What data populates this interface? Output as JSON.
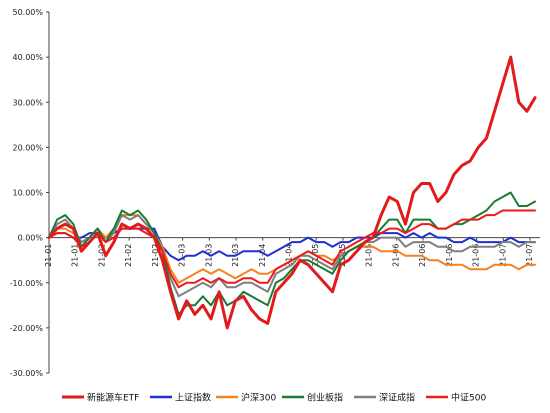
{
  "chart_data": {
    "type": "line",
    "ylim": [
      -30,
      50
    ],
    "y_tick_values": [
      50,
      40,
      30,
      20,
      10,
      0,
      -10,
      -20,
      -30
    ],
    "y_tick_labels": [
      "50.00%",
      "40.00%",
      "30.00%",
      "20.00%",
      "10.00%",
      "0.00%",
      "-10.00%",
      "-20.00%",
      "-30.00%"
    ],
    "x_tick_labels": [
      "21-01",
      "21-01",
      "21-02",
      "21-02",
      "21-02",
      "21-03",
      "21-03",
      "21-03",
      "21-04",
      "21-04",
      "21-05",
      "21-05",
      "21-05",
      "21-06",
      "21-06",
      "21-06",
      "21-06",
      "21-07",
      "21-07"
    ],
    "grid": "none",
    "legend_position": "bottom",
    "series": [
      {
        "name": "新能源车ETF",
        "color": "#e31a1c",
        "width": 3,
        "values": [
          0,
          2,
          3,
          2,
          -3,
          -1,
          1,
          -4,
          -1,
          3,
          2,
          3,
          2,
          0,
          -5,
          -12,
          -18,
          -14,
          -17,
          -15,
          -18,
          -12,
          -20,
          -14,
          -13,
          -16,
          -18,
          -19,
          -12,
          -10,
          -8,
          -5,
          -6,
          -8,
          -10,
          -12,
          -6,
          -5,
          -3,
          -1,
          0,
          5,
          9,
          8,
          3,
          10,
          12,
          12,
          8,
          10,
          14,
          16,
          17,
          20,
          22,
          28,
          34,
          40,
          30,
          28,
          31
        ]
      },
      {
        "name": "上证指数",
        "color": "#1f2fd1",
        "width": 2,
        "values": [
          0,
          1,
          1,
          0,
          0,
          1,
          1,
          0,
          1,
          2,
          2,
          2,
          2,
          2,
          -2,
          -4,
          -5,
          -4,
          -4,
          -3,
          -4,
          -3,
          -4,
          -4,
          -3,
          -3,
          -3,
          -4,
          -3,
          -2,
          -1,
          -1,
          0,
          -1,
          -1,
          -2,
          -1,
          -1,
          0,
          0,
          0,
          1,
          1,
          1,
          0,
          1,
          0,
          1,
          0,
          0,
          -1,
          -1,
          0,
          -1,
          -1,
          -1,
          -1,
          0,
          -1,
          -1,
          -1
        ]
      },
      {
        "name": "沪深300",
        "color": "#f58220",
        "width": 2,
        "values": [
          0,
          2,
          2,
          1,
          -1,
          0,
          2,
          0,
          2,
          5,
          5,
          5,
          3,
          1,
          -2,
          -7,
          -10,
          -9,
          -8,
          -7,
          -8,
          -7,
          -8,
          -9,
          -8,
          -7,
          -8,
          -8,
          -7,
          -6,
          -5,
          -4,
          -3,
          -4,
          -4,
          -5,
          -4,
          -3,
          -2,
          -2,
          -2,
          -3,
          -3,
          -3,
          -4,
          -4,
          -4,
          -5,
          -5,
          -6,
          -6,
          -6,
          -7,
          -7,
          -7,
          -6,
          -6,
          -6,
          -7,
          -6,
          -6
        ]
      },
      {
        "name": "创业板指",
        "color": "#177c34",
        "width": 2,
        "values": [
          0,
          4,
          5,
          3,
          -2,
          0,
          2,
          -1,
          2,
          6,
          5,
          6,
          4,
          1,
          -3,
          -11,
          -17,
          -15,
          -15,
          -13,
          -15,
          -12,
          -15,
          -14,
          -12,
          -13,
          -14,
          -15,
          -10,
          -9,
          -7,
          -5,
          -5,
          -6,
          -7,
          -8,
          -5,
          -3,
          -2,
          -1,
          0,
          2,
          4,
          4,
          1,
          4,
          4,
          4,
          2,
          2,
          3,
          3,
          4,
          5,
          6,
          8,
          9,
          10,
          7,
          7,
          8
        ]
      },
      {
        "name": "深证成指",
        "color": "#7f7f7f",
        "width": 2,
        "values": [
          0,
          3,
          4,
          2,
          -1,
          0,
          2,
          -1,
          1,
          5,
          4,
          5,
          3,
          1,
          -3,
          -9,
          -13,
          -12,
          -11,
          -10,
          -11,
          -9,
          -11,
          -11,
          -10,
          -10,
          -11,
          -12,
          -8,
          -7,
          -6,
          -4,
          -4,
          -5,
          -6,
          -7,
          -4,
          -3,
          -2,
          -1,
          -1,
          0,
          0,
          0,
          -2,
          -1,
          -1,
          -1,
          -2,
          -2,
          -3,
          -3,
          -2,
          -2,
          -2,
          -2,
          -1,
          -1,
          -2,
          -1,
          -1
        ]
      },
      {
        "name": "中证500",
        "color": "#f01a1a",
        "width": 2,
        "values": [
          0,
          1,
          1,
          0,
          -2,
          -1,
          1,
          -1,
          0,
          2,
          2,
          2,
          1,
          0,
          -3,
          -8,
          -11,
          -10,
          -10,
          -9,
          -10,
          -9,
          -10,
          -10,
          -9,
          -9,
          -10,
          -10,
          -7,
          -6,
          -5,
          -4,
          -3,
          -4,
          -5,
          -6,
          -3,
          -2,
          -1,
          0,
          1,
          1,
          2,
          2,
          1,
          2,
          3,
          3,
          2,
          2,
          3,
          4,
          4,
          4,
          5,
          5,
          6,
          6,
          6,
          6,
          6
        ]
      }
    ]
  }
}
